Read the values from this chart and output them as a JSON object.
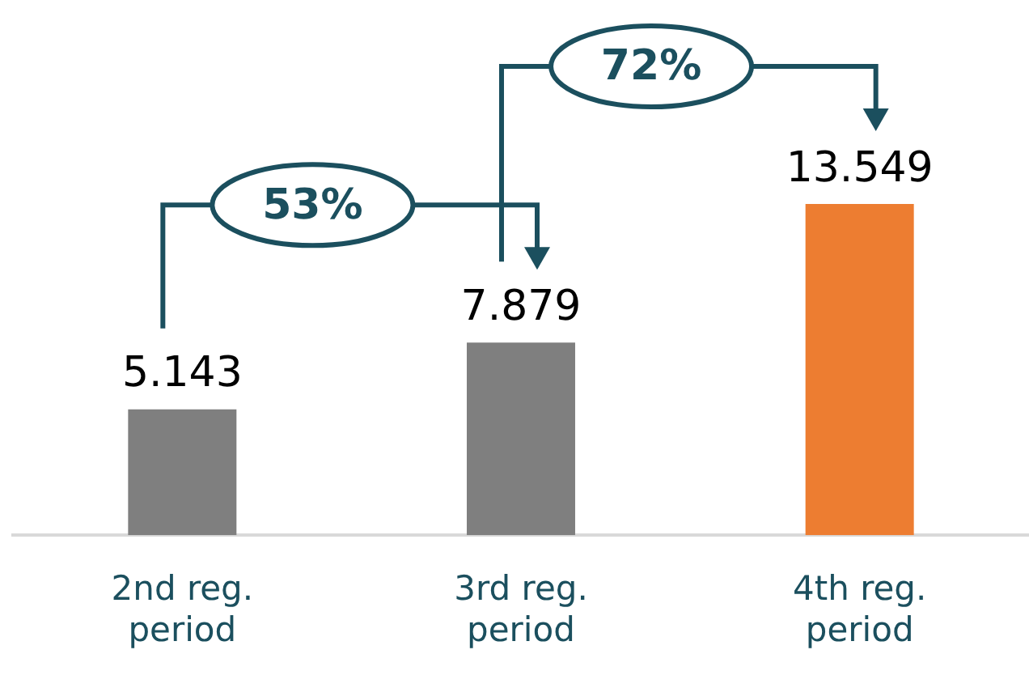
{
  "chart_data": {
    "type": "bar",
    "categories": [
      "2nd reg. period",
      "3rd reg. period",
      "4th reg. period"
    ],
    "values": [
      5.143,
      7.879,
      13.549
    ],
    "colors": [
      "#7f7f7f",
      "#7f7f7f",
      "#ed7d31"
    ],
    "data_labels": true,
    "annotations": [
      "53%",
      "72%"
    ]
  }
}
